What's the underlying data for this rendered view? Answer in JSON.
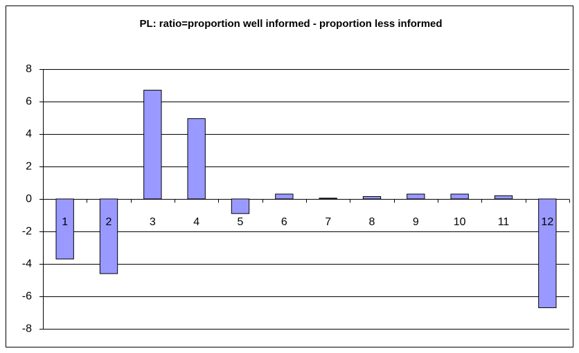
{
  "chart_data": {
    "type": "bar",
    "title": "PL: ratio=proportion well informed - proportion less informed",
    "categories": [
      "1",
      "2",
      "3",
      "4",
      "5",
      "6",
      "7",
      "8",
      "9",
      "10",
      "11",
      "12"
    ],
    "values": [
      -3.7,
      -4.6,
      6.7,
      4.95,
      -0.9,
      0.3,
      0.05,
      0.15,
      0.3,
      0.3,
      0.2,
      -6.7
    ],
    "color": "#9999ff",
    "ylim": [
      -8,
      8
    ],
    "yticks": [
      -8,
      -6,
      -4,
      -2,
      0,
      2,
      4,
      6,
      8
    ],
    "grid": true
  }
}
